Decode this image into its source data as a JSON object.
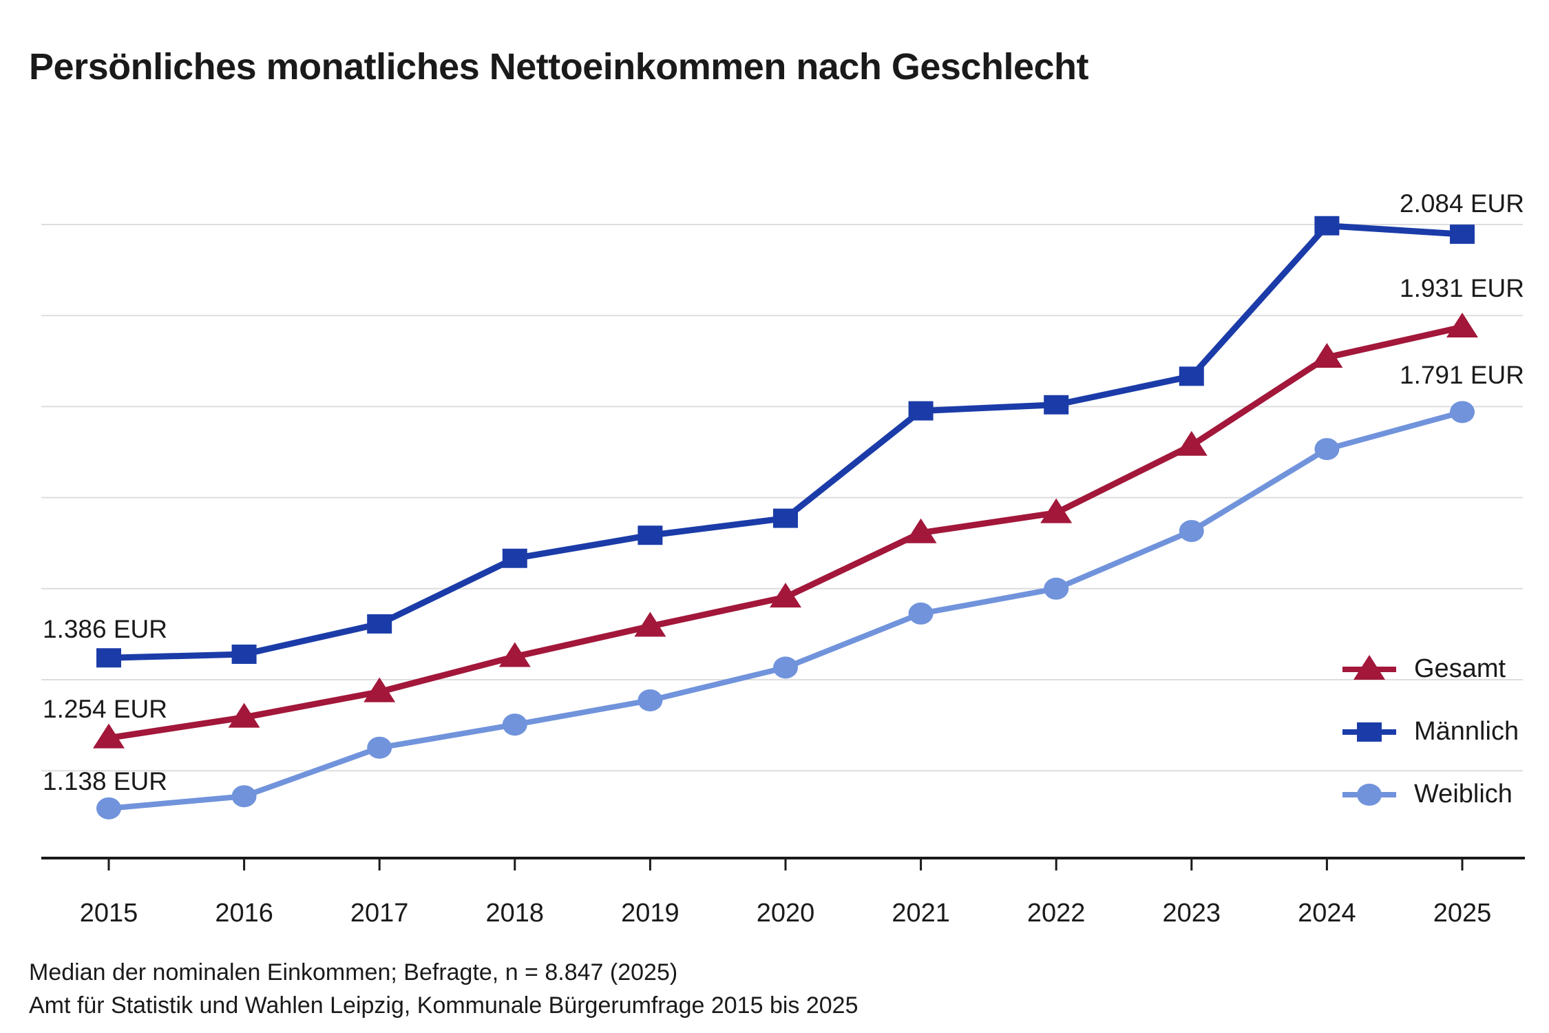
{
  "title": "Persönliches monatliches Nettoeinkommen nach Geschlecht",
  "chart_data": {
    "type": "line",
    "x": [
      2015,
      2016,
      2017,
      2018,
      2019,
      2020,
      2021,
      2022,
      2023,
      2024,
      2025
    ],
    "unit": "EUR",
    "ylim": [
      1200,
      2100
    ],
    "ytick_step": 150,
    "grid": "horizontal-only",
    "legend_position": "right-middle",
    "series": [
      {
        "id": "gesamt",
        "name": "Gesamt",
        "color": "#A2173A",
        "marker": "triangle",
        "values": [
          1254,
          1288,
          1330,
          1388,
          1438,
          1486,
          1592,
          1625,
          1736,
          1881,
          1931
        ]
      },
      {
        "id": "maennlich",
        "name": "Männlich",
        "color": "#1B3CA8",
        "marker": "square",
        "values": [
          1386,
          1392,
          1442,
          1550,
          1588,
          1616,
          1793,
          1803,
          1850,
          2098,
          2084
        ]
      },
      {
        "id": "weiblich",
        "name": "Weiblich",
        "color": "#7093DB",
        "marker": "circle",
        "values": [
          1138,
          1158,
          1238,
          1276,
          1316,
          1370,
          1459,
          1500,
          1595,
          1730,
          1791
        ]
      }
    ],
    "annotations": {
      "left": [
        {
          "series": "Männlich",
          "year": 2015,
          "label": "1.386 EUR"
        },
        {
          "series": "Gesamt",
          "year": 2015,
          "label": "1.254 EUR"
        },
        {
          "series": "Weiblich",
          "year": 2015,
          "label": "1.138 EUR"
        }
      ],
      "right": [
        {
          "series": "Männlich",
          "year": 2025,
          "label": "2.084 EUR"
        },
        {
          "series": "Gesamt",
          "year": 2025,
          "label": "1.931 EUR"
        },
        {
          "series": "Weiblich",
          "year": 2025,
          "label": "1.791 EUR"
        }
      ]
    }
  },
  "colors": {
    "gridline": "#DDDDDD",
    "axis": "#1a1a1a",
    "text": "#1a1a1a"
  },
  "footer": {
    "line1": "Median der nominalen Einkommen; Befragte, n = 8.847 (2025)",
    "line2": "Amt für Statistik und Wahlen Leipzig, Kommunale Bürgerumfrage 2015 bis 2025"
  }
}
